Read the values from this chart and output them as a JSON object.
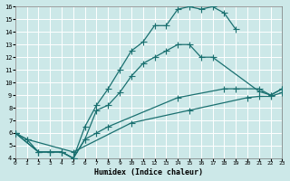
{
  "xlabel": "Humidex (Indice chaleur)",
  "bg_color": "#cce8e8",
  "grid_color": "#b8d8d8",
  "line_color": "#1a7070",
  "xlim": [
    0,
    23
  ],
  "ylim": [
    4,
    16
  ],
  "xticks": [
    0,
    1,
    2,
    3,
    4,
    5,
    6,
    7,
    8,
    9,
    10,
    11,
    12,
    13,
    14,
    15,
    16,
    17,
    18,
    19,
    20,
    21,
    22,
    23
  ],
  "yticks": [
    4,
    5,
    6,
    7,
    8,
    9,
    10,
    11,
    12,
    13,
    14,
    15,
    16
  ],
  "line1_x": [
    0,
    1,
    2,
    3,
    4,
    5,
    6,
    7,
    8,
    9,
    10,
    11,
    12,
    13,
    14,
    15,
    16,
    17,
    18,
    19
  ],
  "line1_y": [
    6.0,
    5.5,
    4.5,
    4.5,
    4.5,
    4.0,
    6.5,
    8.2,
    9.5,
    11.0,
    12.5,
    13.2,
    14.5,
    14.5,
    15.8,
    16.0,
    15.8,
    16.0,
    15.5,
    14.2
  ],
  "line2_x": [
    0,
    2,
    3,
    4,
    5,
    6,
    7,
    8,
    9,
    10,
    11,
    12,
    13,
    14,
    15,
    16,
    17,
    21,
    22,
    23
  ],
  "line2_y": [
    6.0,
    4.5,
    4.5,
    4.5,
    4.0,
    5.5,
    7.8,
    8.2,
    9.2,
    10.5,
    11.5,
    12.0,
    12.5,
    13.0,
    13.0,
    12.0,
    12.0,
    9.3,
    9.0,
    9.5
  ],
  "line3_x": [
    0,
    2,
    3,
    4,
    5,
    6,
    7,
    8,
    14,
    18,
    19,
    21,
    22,
    23
  ],
  "line3_y": [
    6.0,
    4.5,
    4.5,
    4.5,
    4.0,
    5.5,
    6.0,
    6.5,
    8.8,
    9.5,
    9.5,
    9.5,
    9.0,
    9.5
  ],
  "line4_x": [
    0,
    1,
    5,
    10,
    15,
    20,
    21,
    22,
    23
  ],
  "line4_y": [
    6.0,
    5.5,
    4.5,
    6.8,
    7.8,
    8.8,
    8.9,
    8.9,
    9.2
  ]
}
